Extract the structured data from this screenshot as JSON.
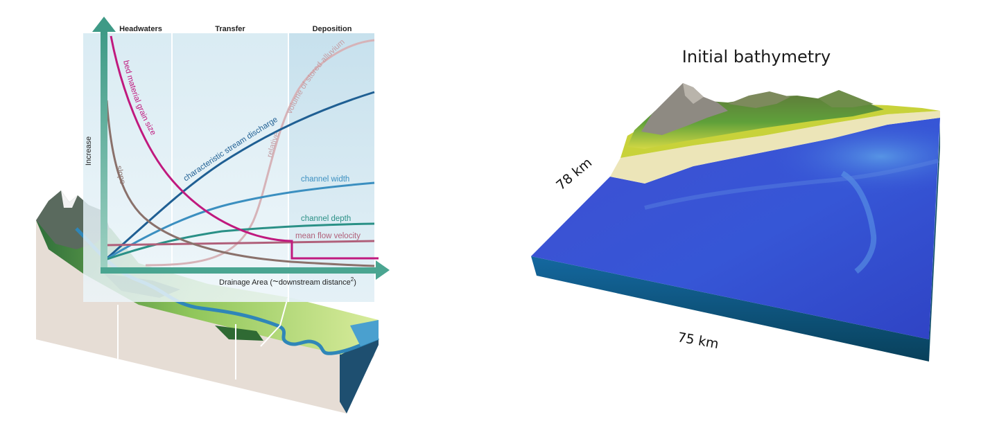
{
  "left_panel": {
    "zones": [
      "Headwaters",
      "Transfer",
      "Deposition"
    ],
    "y_axis_label": "Increase",
    "x_axis_label": "Drainage Area (",
    "x_axis_label_tilde": "~",
    "x_axis_label_tail": "downstream distance",
    "x_axis_label_sup": "2",
    "x_axis_label_close": ")",
    "curves": {
      "grain_size": "bed material grain size",
      "slope": "slope",
      "discharge": "characteristic stream discharge",
      "alluvium_relative": "relative",
      "alluvium_volume": "volume of stored alluvium",
      "width": "channel width",
      "depth": "channel depth",
      "velocity": "mean flow velocity"
    },
    "colors": {
      "grain_size": "#c0197e",
      "slope": "#8a716b",
      "discharge": "#1f5f93",
      "alluvium": "#d6b3b8",
      "width": "#3b8fc0",
      "depth": "#2a9086",
      "velocity": "#b0607a",
      "axis": "#4aa591"
    }
  },
  "right_panel": {
    "title": "Initial bathymetry",
    "width_label": "75 km",
    "depth_label": "78 km",
    "colors": {
      "deep_sea": "#2f3fc8",
      "shallow_sea": "#4a7ee0",
      "beach": "#ece5b8",
      "lowland": "#c8d23a",
      "forest": "#3f8a2f",
      "mountain": "#8e8a82",
      "base_side": "#0e5a78"
    }
  }
}
